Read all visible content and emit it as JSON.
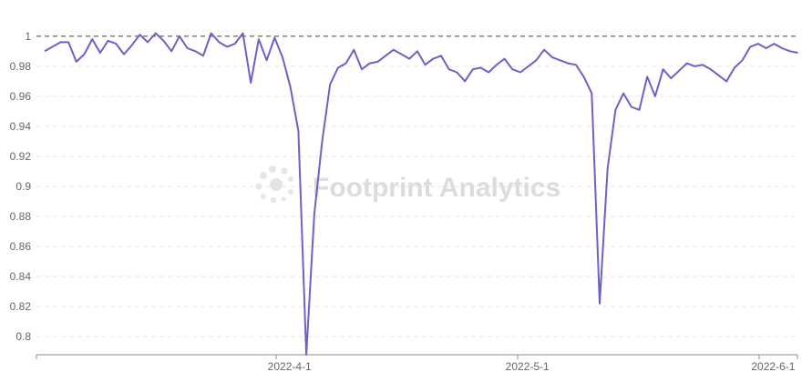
{
  "chart_data": {
    "type": "line",
    "title": "",
    "xlabel": "",
    "ylabel": "",
    "ylim": [
      0.788,
      1.012
    ],
    "y_ticks": [
      0.8,
      0.82,
      0.84,
      0.86,
      0.88,
      0.9,
      0.92,
      0.94,
      0.96,
      0.98,
      1
    ],
    "x_ticks": [
      "2022-4-1",
      "2022-5-1",
      "2022-6-1"
    ],
    "x_start": "2022-3-1",
    "reference_line": {
      "value": 1,
      "style": "dashed",
      "color": "#555555"
    },
    "grid": "horizontal dashed",
    "series": [
      {
        "color": "#6b63c4",
        "values": [
          0.99,
          0.993,
          0.996,
          0.996,
          0.983,
          0.988,
          0.998,
          0.989,
          0.997,
          0.995,
          0.988,
          0.994,
          1.001,
          0.996,
          1.002,
          0.997,
          0.99,
          1.0,
          0.992,
          0.99,
          0.987,
          1.002,
          0.996,
          0.993,
          0.995,
          1.002,
          0.969,
          0.998,
          0.984,
          0.999,
          0.986,
          0.966,
          0.937,
          0.788,
          0.881,
          0.93,
          0.968,
          0.979,
          0.982,
          0.991,
          0.978,
          0.982,
          0.983,
          0.987,
          0.991,
          0.988,
          0.985,
          0.99,
          0.981,
          0.985,
          0.987,
          0.978,
          0.976,
          0.97,
          0.978,
          0.979,
          0.976,
          0.981,
          0.985,
          0.978,
          0.976,
          0.98,
          0.984,
          0.991,
          0.986,
          0.984,
          0.982,
          0.981,
          0.973,
          0.962,
          0.822,
          0.912,
          0.951,
          0.962,
          0.953,
          0.951,
          0.973,
          0.96,
          0.978,
          0.972,
          0.977,
          0.982,
          0.98,
          0.981,
          0.978,
          0.974,
          0.97,
          0.979,
          0.984,
          0.993,
          0.995,
          0.992,
          0.995,
          0.992,
          0.99,
          0.989
        ]
      }
    ]
  },
  "watermark": {
    "text": "Footprint Analytics",
    "icon": "footprint-logo-icon"
  }
}
